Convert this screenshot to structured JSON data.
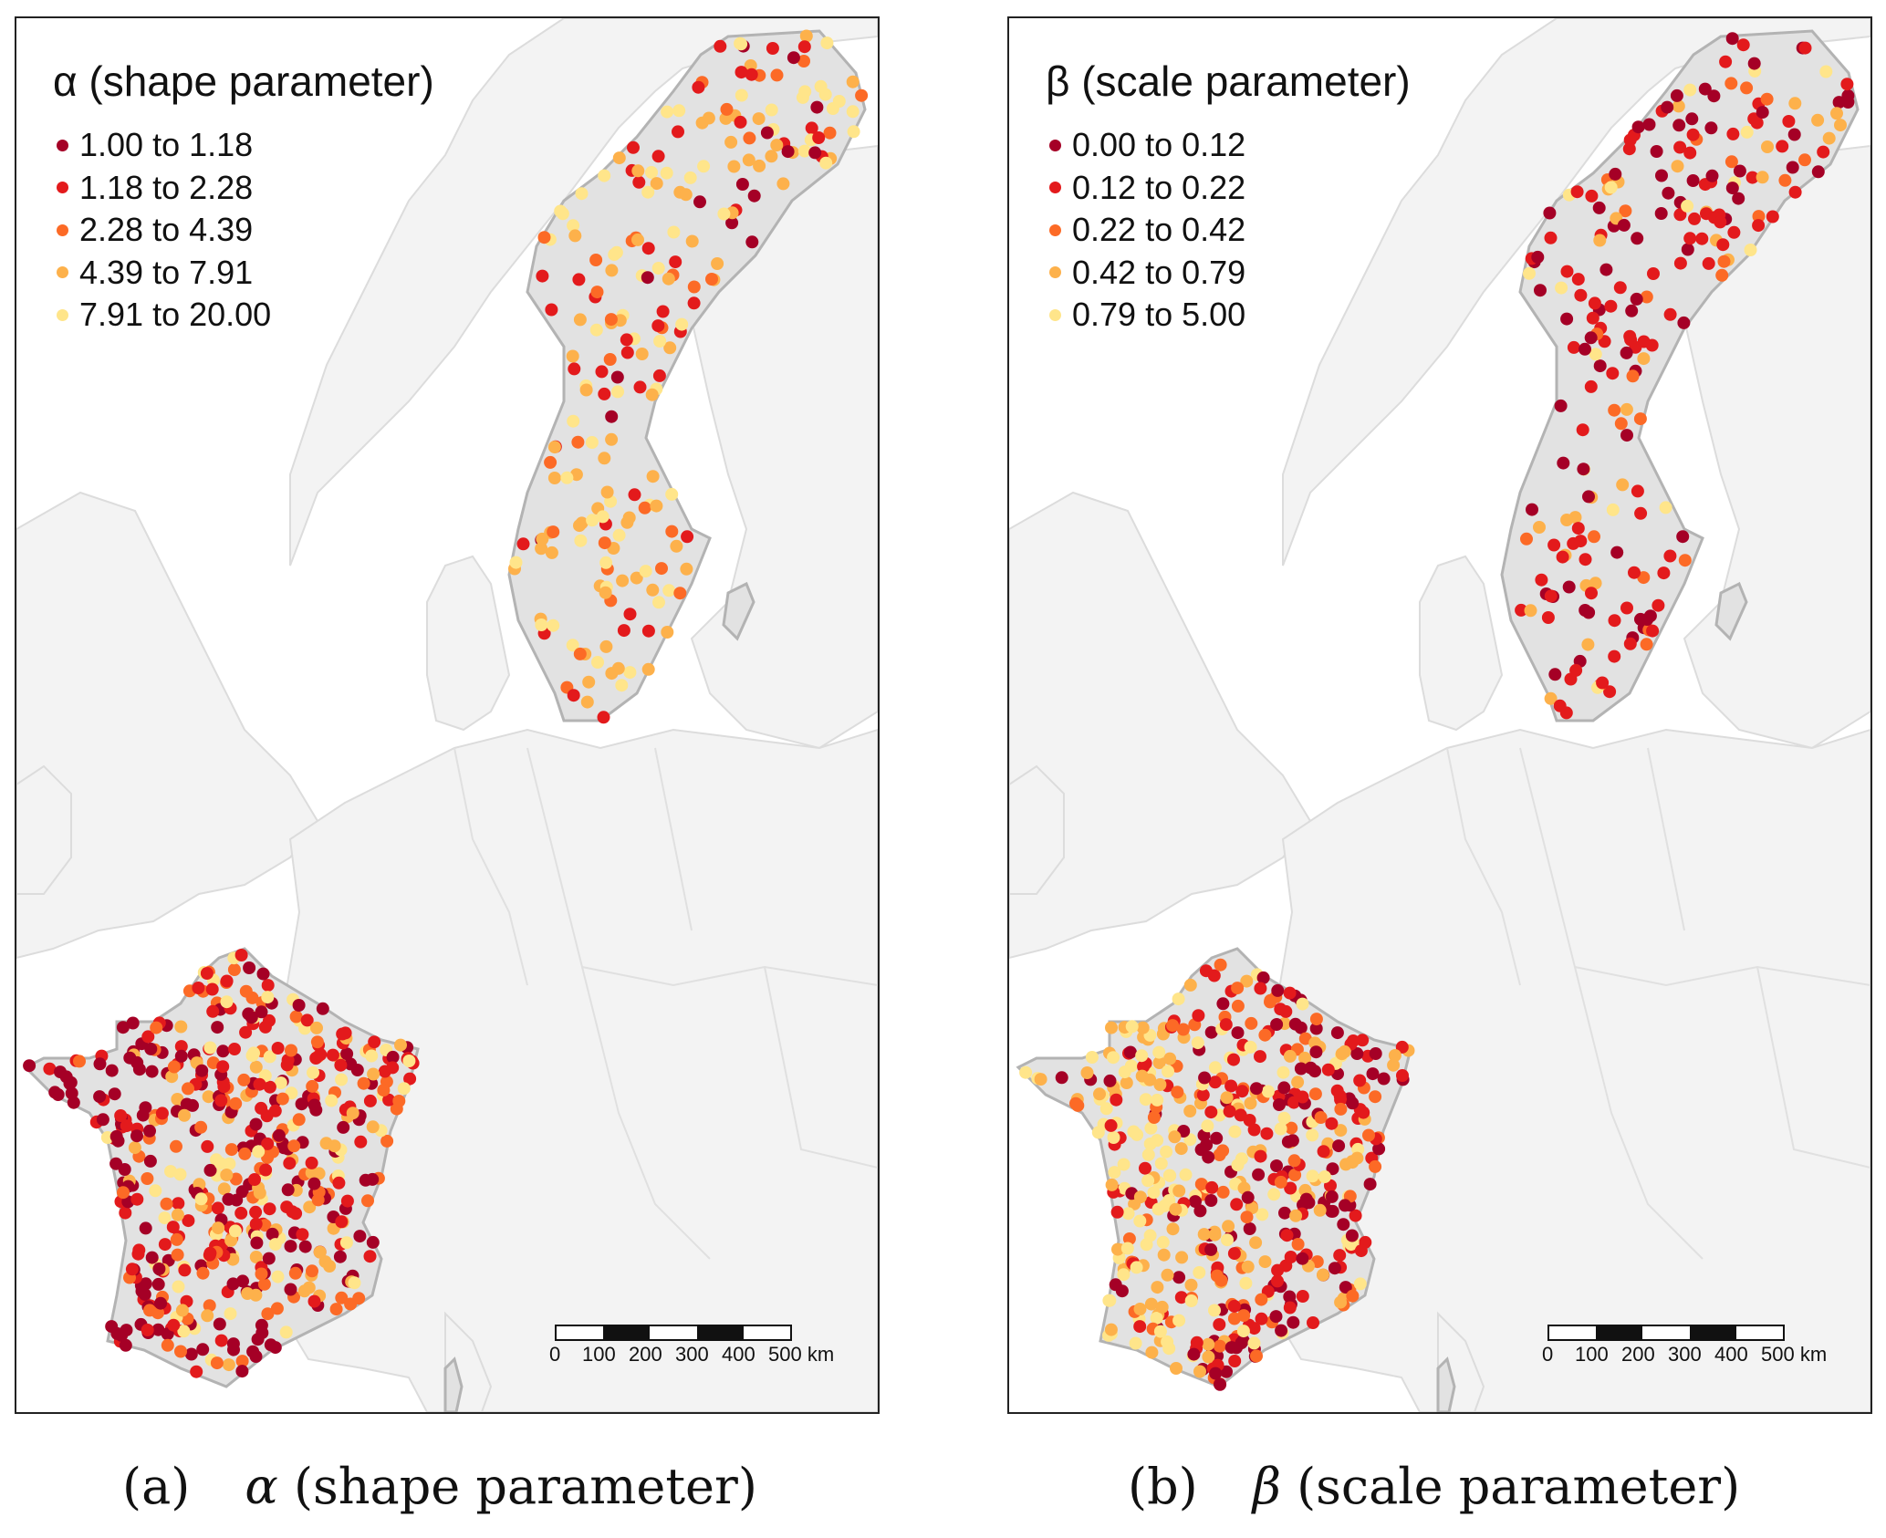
{
  "panels": [
    {
      "id": "a",
      "legend_title": "α (shape parameter)",
      "legend": [
        {
          "label": "1.00 to 1.18",
          "color": "#a50026"
        },
        {
          "label": "1.18 to 2.28",
          "color": "#e31a1c"
        },
        {
          "label": "2.28 to 4.39",
          "color": "#fc6a26"
        },
        {
          "label": "4.39 to 7.91",
          "color": "#fdb14b"
        },
        {
          "label": "7.91 to 20.00",
          "color": "#ffe58a"
        }
      ],
      "caption_tag": "(a)",
      "caption_greek": "α",
      "caption_text": " (shape parameter)"
    },
    {
      "id": "b",
      "legend_title": "β (scale parameter)",
      "legend": [
        {
          "label": "0.00 to 0.12",
          "color": "#a50026"
        },
        {
          "label": "0.12 to 0.22",
          "color": "#e31a1c"
        },
        {
          "label": "0.22 to 0.42",
          "color": "#fc6a26"
        },
        {
          "label": "0.42 to 0.79",
          "color": "#fdb14b"
        },
        {
          "label": "0.79 to 5.00",
          "color": "#ffe58a"
        }
      ],
      "caption_tag": "(b)",
      "caption_greek": "β",
      "caption_text": " (scale parameter)"
    }
  ],
  "scalebar": {
    "ticks": [
      "0",
      "100",
      "200",
      "300",
      "400",
      "500 km"
    ]
  },
  "colors": {
    "land_background": "#f2f2f2",
    "land_highlight": "#e2e2e2",
    "border_line": "#dddddd",
    "highlight_outline": "#b3b3b3",
    "sea": "#ffffff"
  }
}
